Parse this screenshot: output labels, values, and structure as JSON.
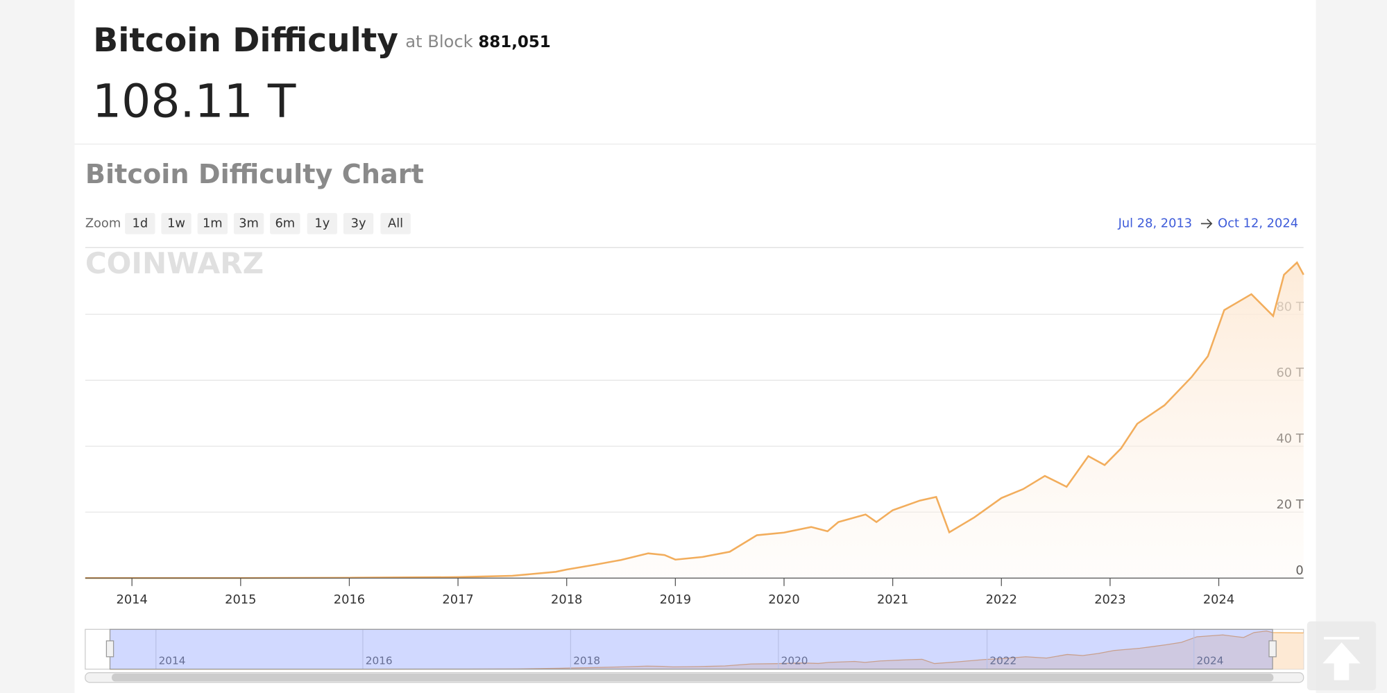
{
  "header": {
    "title": "Bitcoin Difficulty",
    "at_label": "at Block",
    "block": "881,051",
    "value": "108.11 T"
  },
  "watermark": "COINWARZ",
  "chart_data": {
    "type": "line",
    "title": "Bitcoin Difficulty Chart",
    "zoom_label": "Zoom",
    "zoom_buttons": [
      "1d",
      "1w",
      "1m",
      "3m",
      "6m",
      "1y",
      "3y",
      "All"
    ],
    "range_start": "Jul 28, 2013",
    "range_end": "Oct 12, 2024",
    "x": [
      2013.57,
      2014.0,
      2015.0,
      2016.0,
      2017.0,
      2017.5,
      2017.9,
      2018.0,
      2018.25,
      2018.5,
      2018.75,
      2018.9,
      2019.0,
      2019.25,
      2019.5,
      2019.75,
      2020.0,
      2020.25,
      2020.4,
      2020.5,
      2020.75,
      2020.85,
      2021.0,
      2021.25,
      2021.4,
      2021.52,
      2021.75,
      2022.0,
      2022.2,
      2022.4,
      2022.6,
      2022.8,
      2022.95,
      2023.1,
      2023.25,
      2023.5,
      2023.75,
      2023.9,
      2024.05,
      2024.3,
      2024.5,
      2024.6,
      2024.72,
      2024.78
    ],
    "values": [
      0.03,
      0.03,
      0.04,
      0.1,
      0.3,
      0.7,
      1.9,
      2.6,
      4,
      5.5,
      7.5,
      7,
      5.6,
      6.4,
      8,
      13,
      13.8,
      15.5,
      14.2,
      17,
      19.3,
      17,
      20.6,
      23.5,
      24.6,
      13.9,
      18.4,
      24.3,
      27,
      31,
      27.7,
      37,
      34.3,
      39.3,
      46.8,
      52.4,
      61,
      67.3,
      81.3,
      86.1,
      79.5,
      92,
      95.7,
      92
    ],
    "color": "#f2ad5c",
    "xlim": [
      2013.57,
      2024.78
    ],
    "xticks": [
      2014,
      2015,
      2016,
      2017,
      2018,
      2019,
      2020,
      2021,
      2022,
      2023,
      2024
    ],
    "ylim": [
      0,
      100
    ],
    "yticks": [
      0,
      {
        "value": 20,
        "label": "20 T"
      },
      {
        "value": 40,
        "label": "40 T"
      },
      {
        "value": 60,
        "label": "60 T"
      },
      {
        "value": 80,
        "label": "80 T"
      }
    ],
    "grid": true
  },
  "navigator": {
    "labels": [
      "2014",
      "2016",
      "2018",
      "2020",
      "2022",
      "2024"
    ]
  }
}
